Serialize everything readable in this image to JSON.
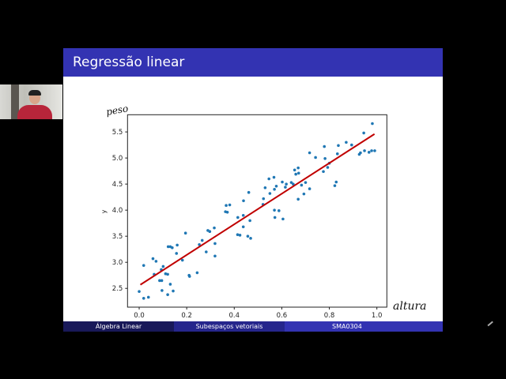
{
  "slide": {
    "title": "Regressão linear",
    "footer": {
      "left": "Álgebra Linear",
      "center": "Subespaços vetoriais",
      "right": "SMA0304"
    },
    "handwritten": {
      "y_note": "peso",
      "x_note": "altura"
    }
  },
  "colors": {
    "title_bar": "#3333b2",
    "footer_left": "#191959",
    "footer_center": "#26268c",
    "footer_right": "#3333b2",
    "points": "#1f77b4",
    "line": "#c00000"
  },
  "chart_data": {
    "type": "scatter",
    "title": "",
    "xlabel": "",
    "ylabel": "y",
    "xlim": [
      -0.049,
      1.042
    ],
    "ylim": [
      2.14,
      5.83
    ],
    "xticks": [
      "0.0",
      "0.2",
      "0.4",
      "0.6",
      "0.8",
      "1.0"
    ],
    "yticks": [
      "2.5",
      "3.0",
      "3.5",
      "4.0",
      "4.5",
      "5.0",
      "5.5"
    ],
    "grid": false,
    "points": [
      [
        0.0,
        2.44
      ],
      [
        0.019,
        2.31
      ],
      [
        0.019,
        2.94
      ],
      [
        0.039,
        2.33
      ],
      [
        0.058,
        3.07
      ],
      [
        0.063,
        2.77
      ],
      [
        0.071,
        3.02
      ],
      [
        0.086,
        2.65
      ],
      [
        0.095,
        2.65
      ],
      [
        0.096,
        2.46
      ],
      [
        0.093,
        2.86
      ],
      [
        0.101,
        2.92
      ],
      [
        0.111,
        2.78
      ],
      [
        0.12,
        2.77
      ],
      [
        0.12,
        2.38
      ],
      [
        0.122,
        3.3
      ],
      [
        0.131,
        3.3
      ],
      [
        0.131,
        2.58
      ],
      [
        0.139,
        3.28
      ],
      [
        0.143,
        2.45
      ],
      [
        0.157,
        3.17
      ],
      [
        0.16,
        3.33
      ],
      [
        0.182,
        3.04
      ],
      [
        0.195,
        3.56
      ],
      [
        0.21,
        2.75
      ],
      [
        0.212,
        2.73
      ],
      [
        0.244,
        2.8
      ],
      [
        0.253,
        3.34
      ],
      [
        0.265,
        3.42
      ],
      [
        0.282,
        3.2
      ],
      [
        0.289,
        3.61
      ],
      [
        0.297,
        3.59
      ],
      [
        0.316,
        3.66
      ],
      [
        0.319,
        3.36
      ],
      [
        0.319,
        3.12
      ],
      [
        0.363,
        3.97
      ],
      [
        0.366,
        4.09
      ],
      [
        0.371,
        3.96
      ],
      [
        0.381,
        4.1
      ],
      [
        0.415,
        3.86
      ],
      [
        0.414,
        3.53
      ],
      [
        0.424,
        3.52
      ],
      [
        0.438,
        3.9
      ],
      [
        0.439,
        4.18
      ],
      [
        0.438,
        3.68
      ],
      [
        0.457,
        3.5
      ],
      [
        0.461,
        4.34
      ],
      [
        0.466,
        3.8
      ],
      [
        0.469,
        3.46
      ],
      [
        0.523,
        4.22
      ],
      [
        0.53,
        4.43
      ],
      [
        0.521,
        4.11
      ],
      [
        0.546,
        4.6
      ],
      [
        0.55,
        4.32
      ],
      [
        0.567,
        4.63
      ],
      [
        0.569,
        4.4
      ],
      [
        0.577,
        4.46
      ],
      [
        0.569,
        4.0
      ],
      [
        0.571,
        3.86
      ],
      [
        0.588,
        3.99
      ],
      [
        0.602,
        4.54
      ],
      [
        0.605,
        3.83
      ],
      [
        0.615,
        4.44
      ],
      [
        0.619,
        4.5
      ],
      [
        0.64,
        4.53
      ],
      [
        0.648,
        4.5
      ],
      [
        0.654,
        4.77
      ],
      [
        0.659,
        4.69
      ],
      [
        0.669,
        4.81
      ],
      [
        0.671,
        4.71
      ],
      [
        0.669,
        4.21
      ],
      [
        0.683,
        4.48
      ],
      [
        0.693,
        4.31
      ],
      [
        0.7,
        4.53
      ],
      [
        0.717,
        4.41
      ],
      [
        0.717,
        5.1
      ],
      [
        0.742,
        5.01
      ],
      [
        0.775,
        4.74
      ],
      [
        0.779,
        5.22
      ],
      [
        0.782,
        4.99
      ],
      [
        0.793,
        4.82
      ],
      [
        0.8,
        4.9
      ],
      [
        0.823,
        4.47
      ],
      [
        0.829,
        4.54
      ],
      [
        0.834,
        5.08
      ],
      [
        0.838,
        5.24
      ],
      [
        0.871,
        5.3
      ],
      [
        0.894,
        5.25
      ],
      [
        0.926,
        5.07
      ],
      [
        0.931,
        5.1
      ],
      [
        0.945,
        5.48
      ],
      [
        0.948,
        5.14
      ],
      [
        0.967,
        5.11
      ],
      [
        0.978,
        5.14
      ],
      [
        0.981,
        5.66
      ],
      [
        0.991,
        5.14
      ]
    ],
    "fit_line": {
      "x": [
        0.005,
        0.99
      ],
      "y": [
        2.57,
        5.46
      ]
    }
  }
}
